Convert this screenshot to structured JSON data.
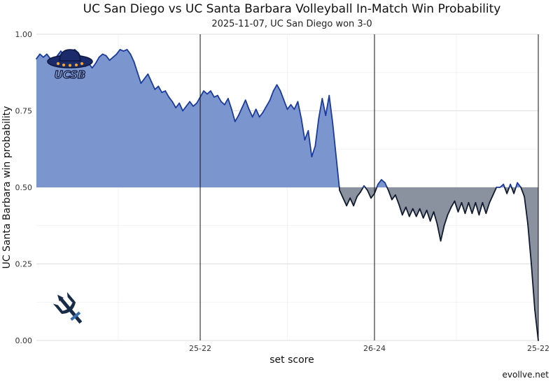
{
  "chart_data": {
    "type": "area",
    "title": "UC San Diego vs UC Santa Barbara Volleyball In-Match Win Probability",
    "subtitle": "2025-11-07, UC San Diego won 3-0",
    "xlabel": "set score",
    "ylabel": "UC Santa Barbara win probability",
    "ylim": [
      0,
      1
    ],
    "yticks": [
      "0.00",
      "0.25",
      "0.50",
      "0.75",
      "1.00"
    ],
    "yticks_values": [
      0,
      0.25,
      0.5,
      0.75,
      1.0
    ],
    "baseline": 0.5,
    "set_markers": [
      {
        "label": "25-22",
        "point": 47
      },
      {
        "label": "26-24",
        "point": 97
      },
      {
        "label": "25-22",
        "point": 144
      }
    ],
    "team_above": {
      "name": "UC Santa Barbara",
      "logo_text": "UCSB",
      "fill_color": "#7b96cf",
      "line_color": "#1a3a9c"
    },
    "team_below": {
      "name": "UC San Diego",
      "fill_color": "#8a919f",
      "line_color": "#101a2e"
    },
    "series": [
      {
        "name": "UC Santa Barbara win probability",
        "x": [
          0,
          1,
          2,
          3,
          4,
          5,
          6,
          7,
          8,
          9,
          10,
          11,
          12,
          13,
          14,
          15,
          16,
          17,
          18,
          19,
          20,
          21,
          22,
          23,
          24,
          25,
          26,
          27,
          28,
          29,
          30,
          31,
          32,
          33,
          34,
          35,
          36,
          37,
          38,
          39,
          40,
          41,
          42,
          43,
          44,
          45,
          46,
          47,
          48,
          49,
          50,
          51,
          52,
          53,
          54,
          55,
          56,
          57,
          58,
          59,
          60,
          61,
          62,
          63,
          64,
          65,
          66,
          67,
          68,
          69,
          70,
          71,
          72,
          73,
          74,
          75,
          76,
          77,
          78,
          79,
          80,
          81,
          82,
          83,
          84,
          85,
          86,
          87,
          88,
          89,
          90,
          91,
          92,
          93,
          94,
          95,
          96,
          97,
          98,
          99,
          100,
          101,
          102,
          103,
          104,
          105,
          106,
          107,
          108,
          109,
          110,
          111,
          112,
          113,
          114,
          115,
          116,
          117,
          118,
          119,
          120,
          121,
          122,
          123,
          124,
          125,
          126,
          127,
          128,
          129,
          130,
          131,
          132,
          133,
          134,
          135,
          136,
          137,
          138,
          139,
          140,
          141,
          142,
          143,
          144
        ],
        "values": [
          0.92,
          0.935,
          0.925,
          0.935,
          0.92,
          0.91,
          0.93,
          0.945,
          0.93,
          0.935,
          0.945,
          0.95,
          0.94,
          0.92,
          0.895,
          0.905,
          0.89,
          0.905,
          0.925,
          0.935,
          0.93,
          0.915,
          0.925,
          0.935,
          0.95,
          0.945,
          0.95,
          0.935,
          0.91,
          0.875,
          0.84,
          0.855,
          0.87,
          0.845,
          0.82,
          0.83,
          0.81,
          0.815,
          0.795,
          0.78,
          0.76,
          0.775,
          0.75,
          0.765,
          0.78,
          0.765,
          0.775,
          0.795,
          0.815,
          0.805,
          0.815,
          0.795,
          0.8,
          0.78,
          0.77,
          0.79,
          0.755,
          0.715,
          0.735,
          0.76,
          0.785,
          0.755,
          0.73,
          0.755,
          0.73,
          0.745,
          0.765,
          0.785,
          0.815,
          0.835,
          0.815,
          0.785,
          0.755,
          0.77,
          0.755,
          0.78,
          0.725,
          0.655,
          0.685,
          0.6,
          0.635,
          0.725,
          0.79,
          0.735,
          0.8,
          0.71,
          0.6,
          0.49,
          0.465,
          0.44,
          0.465,
          0.44,
          0.47,
          0.485,
          0.505,
          0.49,
          0.465,
          0.48,
          0.51,
          0.525,
          0.515,
          0.49,
          0.46,
          0.475,
          0.445,
          0.41,
          0.435,
          0.405,
          0.43,
          0.405,
          0.43,
          0.4,
          0.425,
          0.39,
          0.42,
          0.38,
          0.325,
          0.375,
          0.41,
          0.435,
          0.455,
          0.42,
          0.45,
          0.415,
          0.45,
          0.415,
          0.45,
          0.41,
          0.45,
          0.415,
          0.45,
          0.475,
          0.5,
          0.5,
          0.51,
          0.48,
          0.51,
          0.48,
          0.515,
          0.5,
          0.47,
          0.38,
          0.25,
          0.1,
          0.0
        ]
      }
    ]
  },
  "credit": "evollve.net"
}
